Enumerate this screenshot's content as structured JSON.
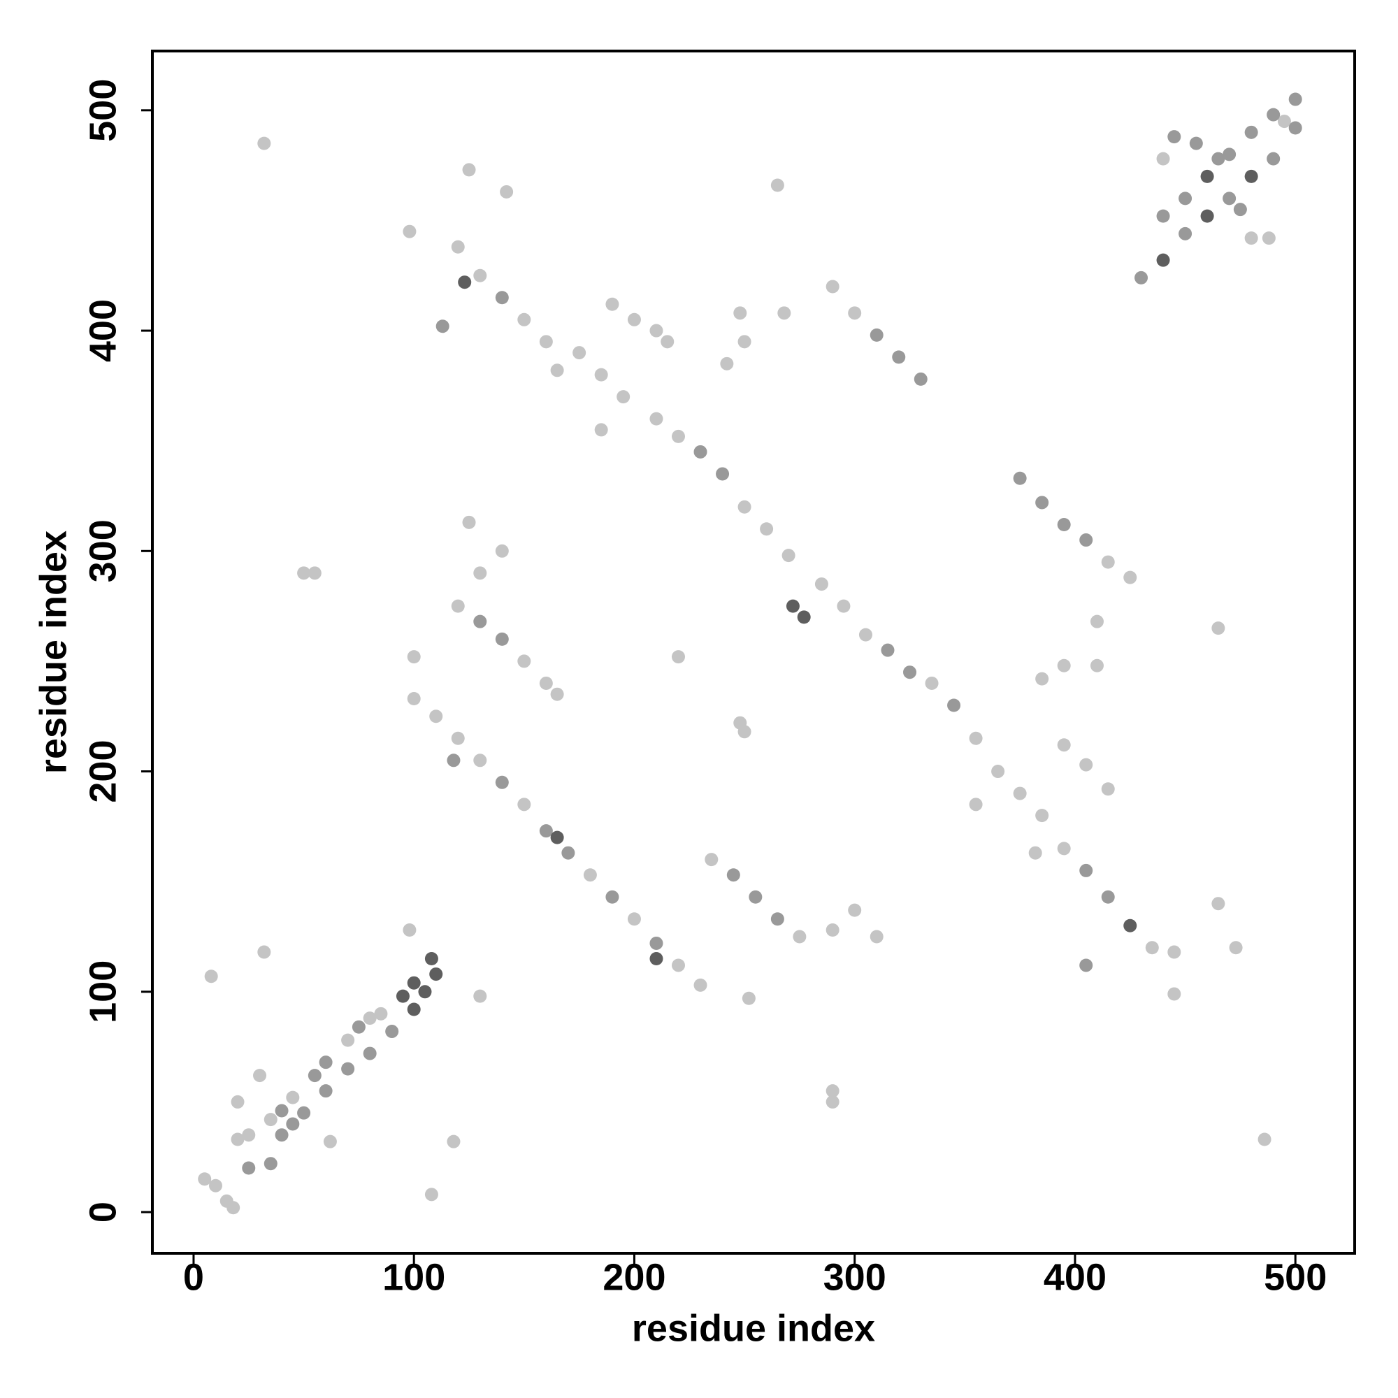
{
  "chart_data": {
    "type": "scatter",
    "x_label": "residue index",
    "y_label": "residue index",
    "xlim": [
      -18.7,
      526.9
    ],
    "ylim": [
      -18.7,
      526.9
    ],
    "xticks": [
      0,
      100,
      200,
      300,
      400,
      500
    ],
    "yticks": [
      0,
      100,
      200,
      300,
      400,
      500
    ],
    "series": [
      {
        "color": "#c4c4c4",
        "x": [
          5,
          10,
          15,
          18,
          20,
          25,
          35,
          45,
          70,
          80,
          85,
          98,
          440,
          480,
          488,
          495,
          120,
          130,
          150,
          160,
          175,
          185,
          195,
          210,
          220,
          250,
          260,
          270,
          285,
          295,
          305,
          335,
          355,
          365,
          375,
          385,
          395,
          435,
          445,
          100,
          110,
          120,
          130,
          150,
          180,
          200,
          220,
          230,
          120,
          150,
          160,
          165,
          235,
          275,
          425,
          415,
          290,
          300,
          190,
          200,
          210,
          215,
          395,
          405,
          415,
          32,
          55,
          50,
          108,
          118,
          8,
          32,
          130,
          125,
          142,
          265,
          268,
          248,
          250,
          242,
          185,
          98,
          100,
          125,
          140,
          130,
          220,
          248,
          250,
          252,
          290,
          300,
          310,
          290,
          290,
          355,
          382,
          385,
          410,
          410,
          395,
          465,
          473,
          465,
          486,
          445,
          165,
          30,
          20,
          62
        ],
        "values": [
          15,
          12,
          5,
          2,
          33,
          35,
          42,
          52,
          78,
          88,
          90,
          128,
          478,
          442,
          442,
          495,
          438,
          425,
          405,
          395,
          390,
          380,
          370,
          360,
          352,
          320,
          310,
          298,
          285,
          275,
          262,
          240,
          215,
          200,
          190,
          180,
          165,
          120,
          99,
          233,
          225,
          215,
          205,
          185,
          153,
          133,
          112,
          103,
          275,
          250,
          240,
          235,
          160,
          125,
          288,
          295,
          420,
          408,
          412,
          405,
          400,
          395,
          212,
          203,
          192,
          485,
          290,
          290,
          8,
          32,
          107,
          118,
          98,
          473,
          463,
          466,
          408,
          408,
          395,
          385,
          355,
          445,
          252,
          313,
          300,
          290,
          252,
          222,
          218,
          97,
          128,
          137,
          125,
          55,
          50,
          185,
          163,
          242,
          268,
          248,
          248,
          140,
          120,
          265,
          33,
          118,
          382,
          62,
          50,
          32
        ]
      },
      {
        "color": "#999999",
        "x": [
          40,
          55,
          60,
          75,
          25,
          35,
          40,
          45,
          50,
          60,
          70,
          80,
          90,
          440,
          450,
          470,
          480,
          490,
          500,
          430,
          450,
          470,
          490,
          500,
          445,
          455,
          465,
          475,
          140,
          230,
          240,
          315,
          325,
          345,
          405,
          415,
          140,
          160,
          170,
          190,
          210,
          130,
          140,
          245,
          255,
          265,
          375,
          385,
          395,
          405,
          310,
          320,
          330,
          113,
          405,
          118
        ],
        "values": [
          46,
          62,
          68,
          84,
          20,
          22,
          35,
          40,
          45,
          55,
          65,
          72,
          82,
          452,
          460,
          480,
          490,
          498,
          505,
          424,
          444,
          460,
          478,
          492,
          488,
          485,
          478,
          455,
          415,
          345,
          335,
          255,
          245,
          230,
          155,
          143,
          195,
          173,
          163,
          143,
          122,
          268,
          260,
          153,
          143,
          133,
          333,
          322,
          312,
          305,
          398,
          388,
          378,
          402,
          112,
          205
        ]
      },
      {
        "color": "#5e5e5e",
        "x": [
          95,
          100,
          108,
          100,
          105,
          110,
          440,
          460,
          460,
          480,
          272,
          277,
          123,
          425,
          210,
          165
        ],
        "values": [
          98,
          104,
          115,
          92,
          100,
          108,
          432,
          452,
          470,
          470,
          275,
          270,
          422,
          130,
          115,
          170
        ]
      }
    ]
  }
}
